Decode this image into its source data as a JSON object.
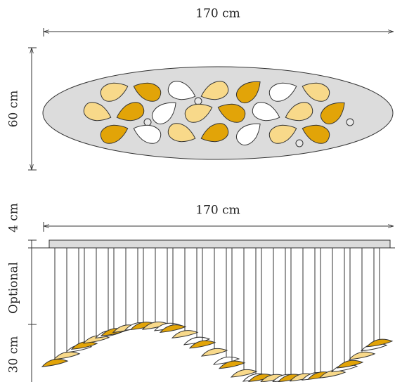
{
  "top_view": {
    "width_label": "170 cm",
    "depth_label": "60 cm"
  },
  "side_view": {
    "width_label": "170 cm",
    "canopy_label": "4 cm",
    "cable_label": "Optional",
    "drop_label": "30 cm"
  }
}
